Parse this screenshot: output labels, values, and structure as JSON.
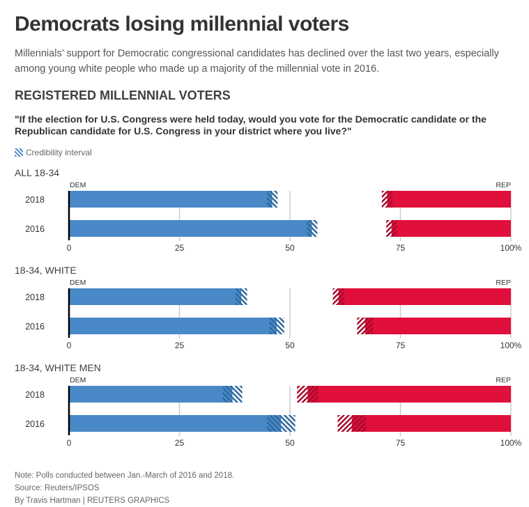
{
  "header": {
    "title": "Democrats losing millennial voters",
    "subtitle": "Millennials’ support for Democratic congressional candidates has declined over the last two years, especially among young white people who made up a majority of the millennial vote in 2016.",
    "section": "REGISTERED MILLENNIAL VOTERS",
    "question": "\"If the election for U.S. Congress were held today, would you vote for the Democratic candidate or the Republican candidate for U.S. Congress in your district where you live?\""
  },
  "legend": {
    "icon": "hatch-pattern-icon",
    "label": "Credibility interval"
  },
  "colors": {
    "dem": "#4a89c8",
    "rep": "#e10f3c",
    "dem_hatch": "#2f6a9e",
    "rep_hatch": "#a40b2c",
    "grid": "#cccccc",
    "baseline": "#000000"
  },
  "chart_data": {
    "type": "bar",
    "orientation": "horizontal-diverging",
    "title": "REGISTERED MILLENNIAL VOTERS",
    "left_label": "DEM",
    "right_label": "REP",
    "xlim": [
      0,
      100
    ],
    "xticks": [
      0,
      25,
      50,
      75,
      100
    ],
    "xtick_labels": [
      "0",
      "25",
      "50",
      "75",
      "100%"
    ],
    "grid": true,
    "categories": [
      "2018",
      "2016"
    ],
    "groups": [
      {
        "label": "ALL 18-34",
        "rows": [
          {
            "year": "2018",
            "dem": 46,
            "rep": 28,
            "dem_ci": 1.2,
            "rep_ci": 1.2
          },
          {
            "year": "2016",
            "dem": 55,
            "rep": 27,
            "dem_ci": 1.2,
            "rep_ci": 1.2
          }
        ]
      },
      {
        "label": "18-34, WHITE",
        "rows": [
          {
            "year": "2018",
            "dem": 39,
            "rep": 39,
            "dem_ci": 1.3,
            "rep_ci": 1.3
          },
          {
            "year": "2016",
            "dem": 47,
            "rep": 33,
            "dem_ci": 1.7,
            "rep_ci": 1.8
          }
        ]
      },
      {
        "label": "18-34, WHITE MEN",
        "rows": [
          {
            "year": "2018",
            "dem": 37,
            "rep": 46,
            "dem_ci": 2.2,
            "rep_ci": 2.4
          },
          {
            "year": "2016",
            "dem": 48,
            "rep": 36,
            "dem_ci": 3.2,
            "rep_ci": 3.2
          }
        ]
      }
    ]
  },
  "footer": {
    "note": "Note: Polls conducted between Jan.-March of 2016 and 2018.",
    "source": "Source: Reuters/IPSOS",
    "credit": "By Travis Hartman | REUTERS GRAPHICS"
  }
}
